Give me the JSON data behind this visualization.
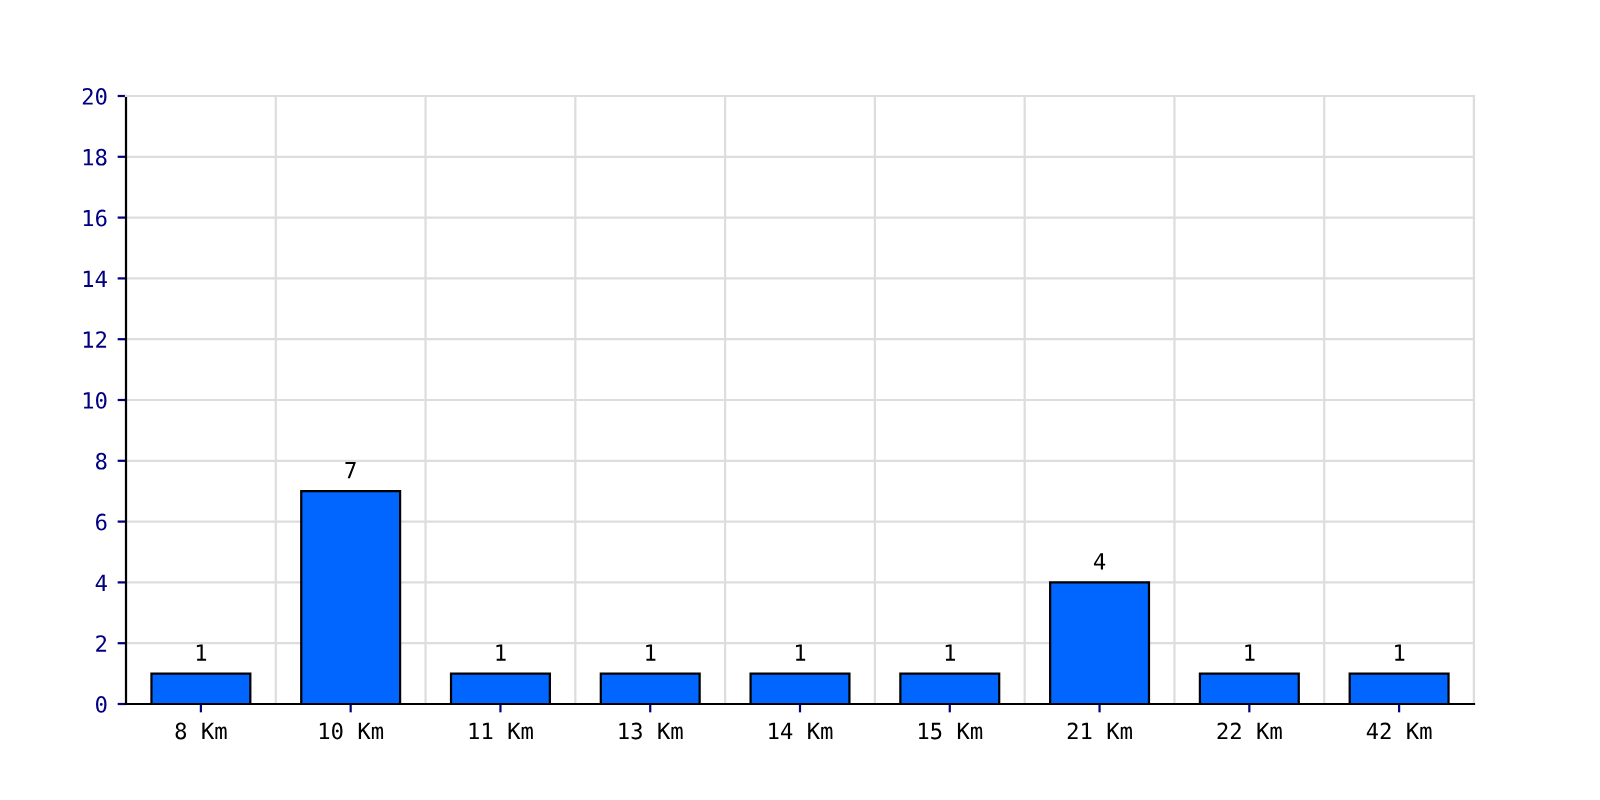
{
  "chart_data": {
    "type": "bar",
    "categories": [
      "8 Km",
      "10 Km",
      "11 Km",
      "13 Km",
      "14 Km",
      "15 Km",
      "21 Km",
      "22 Km",
      "42 Km"
    ],
    "values": [
      1,
      7,
      1,
      1,
      1,
      1,
      4,
      1,
      1
    ],
    "color": "#0066ff",
    "ylim": [
      0,
      20
    ],
    "yticks": [
      0,
      2,
      4,
      6,
      8,
      10,
      12,
      14,
      16,
      18,
      20
    ],
    "grid": true,
    "data_labels": true
  }
}
